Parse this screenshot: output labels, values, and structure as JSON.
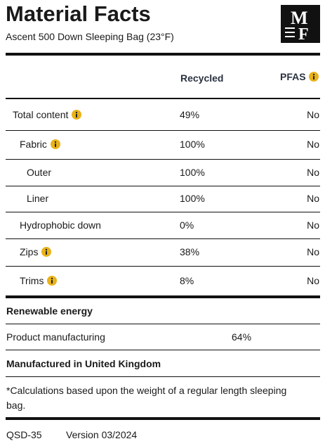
{
  "header": {
    "title": "Material Facts",
    "subtitle": "Ascent 500 Down Sleeping Bag (23°F)",
    "logo": {
      "top": "M",
      "bottom": "F"
    }
  },
  "table": {
    "columns": [
      "Recycled",
      "PFAS"
    ],
    "rows": [
      [
        "Total content",
        "49%",
        "No"
      ],
      [
        "Fabric",
        "100%",
        "No"
      ],
      [
        "Outer",
        "100%",
        "No"
      ],
      [
        "Liner",
        "100%",
        "No"
      ],
      [
        "Hydrophobic down",
        "0%",
        "No"
      ],
      [
        "Zips",
        "38%",
        "No"
      ],
      [
        "Trims",
        "8%",
        "No"
      ]
    ]
  },
  "renewable": {
    "title": "Renewable energy",
    "rows": [
      [
        "Product manufacturing",
        "64%"
      ]
    ]
  },
  "origin": "Manufactured in United Kingdom",
  "footnote": "*Calculations based upon the weight of a regular length sleeping bag.",
  "footer": {
    "code": "QSD-35",
    "version": "Version 03/2024"
  }
}
